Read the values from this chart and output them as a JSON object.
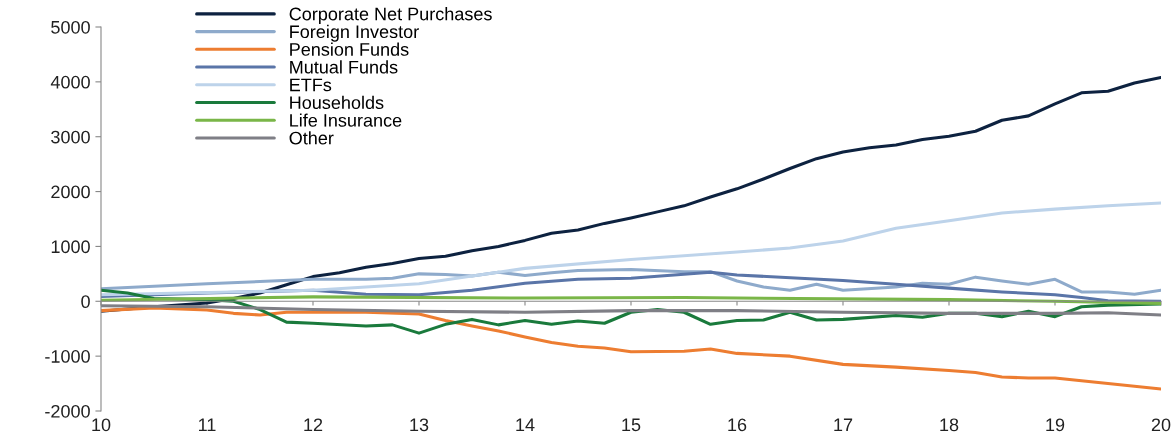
{
  "chart_data": {
    "type": "line",
    "xlim": [
      10,
      20
    ],
    "xticks": [
      10,
      11,
      12,
      13,
      14,
      15,
      16,
      17,
      18,
      19,
      20
    ],
    "ylim": [
      -2000,
      5000
    ],
    "yticks": [
      -2000,
      -1000,
      0,
      1000,
      2000,
      3000,
      4000,
      5000
    ],
    "legend": "top left",
    "marker": "none",
    "line_style": "solid",
    "series": [
      {
        "name": "Corporate Net Purchases",
        "color": "#0d2240",
        "x": [
          10,
          10.5,
          11,
          11.25,
          11.5,
          11.75,
          12,
          12.25,
          12.5,
          12.75,
          13,
          13.25,
          13.5,
          13.75,
          14,
          14.25,
          14.5,
          14.75,
          15,
          15.25,
          15.5,
          15.75,
          16,
          16.25,
          16.5,
          16.75,
          17,
          17.25,
          17.5,
          17.75,
          18,
          18.25,
          18.5,
          18.75,
          19,
          19.25,
          19.5,
          19.75,
          20
        ],
        "values": [
          -180,
          -100,
          -30,
          50,
          150,
          300,
          450,
          520,
          620,
          690,
          780,
          820,
          920,
          1000,
          1110,
          1240,
          1300,
          1420,
          1520,
          1630,
          1740,
          1900,
          2050,
          2230,
          2420,
          2600,
          2720,
          2800,
          2850,
          2950,
          3010,
          3100,
          3300,
          3380,
          3600,
          3800,
          3830,
          3980,
          4080
        ]
      },
      {
        "name": "Foreign Investor",
        "color": "#8eaacb",
        "x": [
          10,
          11,
          12,
          12.5,
          12.75,
          13,
          13.25,
          13.5,
          13.75,
          14,
          14.25,
          14.5,
          15,
          15.5,
          15.75,
          16,
          16.25,
          16.5,
          16.75,
          17,
          17.5,
          17.75,
          18,
          18.25,
          18.5,
          18.75,
          19,
          19.25,
          19.5,
          19.75,
          20
        ],
        "values": [
          230,
          320,
          400,
          400,
          420,
          500,
          490,
          460,
          530,
          470,
          520,
          560,
          580,
          540,
          540,
          370,
          260,
          200,
          310,
          200,
          260,
          330,
          310,
          440,
          370,
          310,
          400,
          170,
          170,
          130,
          200
        ]
      },
      {
        "name": "Pension Funds",
        "color": "#ed7d31",
        "x": [
          10,
          10.5,
          11,
          11.25,
          11.5,
          11.75,
          12,
          12.5,
          13,
          13.25,
          13.5,
          13.75,
          14,
          14.25,
          14.5,
          14.75,
          15,
          15.5,
          15.75,
          16,
          16.5,
          17,
          17.5,
          18,
          18.25,
          18.5,
          18.75,
          19,
          19.5,
          20
        ],
        "values": [
          -170,
          -120,
          -160,
          -220,
          -250,
          -200,
          -200,
          -200,
          -230,
          -350,
          -450,
          -540,
          -650,
          -750,
          -820,
          -850,
          -920,
          -910,
          -870,
          -950,
          -1000,
          -1150,
          -1200,
          -1260,
          -1300,
          -1380,
          -1400,
          -1400,
          -1500,
          -1600
        ]
      },
      {
        "name": "Mutual Funds",
        "color": "#5a75a8",
        "x": [
          10,
          11,
          12,
          12.5,
          13,
          13.5,
          14,
          14.5,
          15,
          15.75,
          16,
          17,
          17.5,
          18,
          18.5,
          19,
          19.25,
          19.5,
          20
        ],
        "values": [
          90,
          150,
          200,
          130,
          120,
          200,
          330,
          400,
          420,
          530,
          480,
          380,
          310,
          240,
          170,
          120,
          70,
          10,
          0
        ]
      },
      {
        "name": "ETFs",
        "color": "#bdd3ea",
        "x": [
          10,
          12,
          13,
          14,
          15,
          16,
          16.5,
          17,
          17.5,
          18,
          18.5,
          19,
          19.5,
          20
        ],
        "values": [
          120,
          200,
          320,
          600,
          760,
          900,
          970,
          1100,
          1330,
          1470,
          1610,
          1680,
          1740,
          1790
        ]
      },
      {
        "name": "Households",
        "color": "#1a7a3c",
        "x": [
          10,
          10.25,
          10.5,
          11,
          11.25,
          11.5,
          11.75,
          12,
          12.5,
          12.75,
          13,
          13.25,
          13.5,
          13.75,
          14,
          14.25,
          14.5,
          14.75,
          15,
          15.25,
          15.5,
          15.75,
          16,
          16.25,
          16.5,
          16.75,
          17,
          17.5,
          17.75,
          18,
          18.25,
          18.5,
          18.75,
          19,
          19.25,
          19.5,
          20
        ],
        "values": [
          200,
          150,
          50,
          30,
          0,
          -150,
          -380,
          -400,
          -450,
          -430,
          -580,
          -420,
          -330,
          -430,
          -350,
          -420,
          -360,
          -400,
          -200,
          -150,
          -200,
          -420,
          -350,
          -340,
          -200,
          -340,
          -330,
          -260,
          -290,
          -220,
          -220,
          -280,
          -180,
          -280,
          -100,
          -70,
          -50
        ]
      },
      {
        "name": "Life Insurance",
        "color": "#7ab648",
        "x": [
          10,
          12,
          14,
          15.5,
          16,
          18,
          19,
          20
        ],
        "values": [
          20,
          80,
          60,
          70,
          60,
          30,
          0,
          -40
        ]
      },
      {
        "name": "Other",
        "color": "#7f7f86",
        "x": [
          10,
          11,
          12,
          13,
          14,
          15,
          16,
          17,
          18,
          19,
          19.5,
          20
        ],
        "values": [
          -80,
          -100,
          -150,
          -180,
          -200,
          -170,
          -170,
          -200,
          -220,
          -220,
          -210,
          -250
        ]
      }
    ]
  }
}
